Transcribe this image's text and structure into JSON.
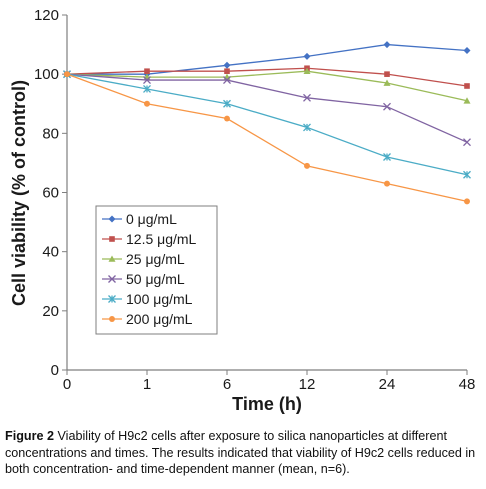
{
  "chart_data": {
    "type": "line",
    "xlabel": "Time (h)",
    "ylabel": "Cell viability (% of control)",
    "categories": [
      "0",
      "1",
      "6",
      "12",
      "24",
      "48"
    ],
    "ylim": [
      0,
      120
    ],
    "yticks": [
      0,
      20,
      40,
      60,
      80,
      100,
      120
    ],
    "grid": false,
    "legend_position": "bottom-left",
    "series": [
      {
        "name": "0 μg/mL",
        "color": "#4472C4",
        "marker": "diamond",
        "values": [
          100,
          100,
          103,
          106,
          110,
          108
        ]
      },
      {
        "name": "12.5 μg/mL",
        "color": "#C0504D",
        "marker": "square",
        "values": [
          100,
          101,
          101,
          102,
          100,
          96
        ]
      },
      {
        "name": "25 μg/mL",
        "color": "#9BBB59",
        "marker": "triangle",
        "values": [
          100,
          99,
          99,
          101,
          97,
          91
        ]
      },
      {
        "name": "50 μg/mL",
        "color": "#8064A2",
        "marker": "x",
        "values": [
          100,
          98,
          98,
          92,
          89,
          77
        ]
      },
      {
        "name": "100 μg/mL",
        "color": "#4BACC6",
        "marker": "star",
        "values": [
          100,
          95,
          90,
          82,
          72,
          66
        ]
      },
      {
        "name": "200 μg/mL",
        "color": "#F79646",
        "marker": "circle",
        "values": [
          100,
          90,
          85,
          69,
          63,
          57
        ]
      }
    ]
  },
  "caption": {
    "label": "Figure 2",
    "text": " Viability of H9c2 cells after exposure to silica nanoparticles at different concentrations and times. The results indicated that viability of H9c2 cells reduced in both concentration- and time-dependent manner (mean, n=6)."
  }
}
